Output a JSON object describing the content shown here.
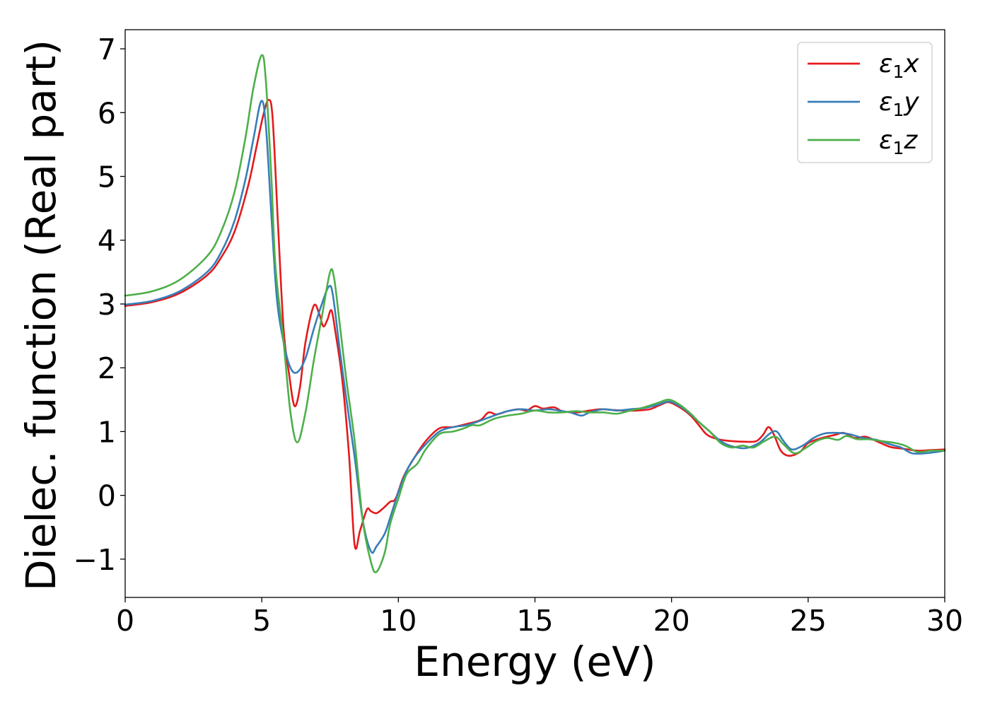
{
  "chart_data": {
    "type": "line",
    "xlabel": "Energy (eV)",
    "ylabel": "Dielec. function (Real part)",
    "xlim": [
      0,
      30
    ],
    "ylim": [
      -1.6,
      7.3
    ],
    "xticks": [
      0,
      5,
      10,
      15,
      20,
      25,
      30
    ],
    "yticks": [
      -1,
      0,
      1,
      2,
      3,
      4,
      5,
      6,
      7
    ],
    "grid": false,
    "legend_position": "top-right",
    "series": [
      {
        "name": "ε1x",
        "legend": {
          "base": "ε",
          "sub": "1",
          "tail": "x"
        },
        "color": "#e41a1c",
        "points": [
          [
            0,
            2.97
          ],
          [
            1,
            3.03
          ],
          [
            2,
            3.17
          ],
          [
            3,
            3.45
          ],
          [
            3.5,
            3.72
          ],
          [
            4,
            4.13
          ],
          [
            4.5,
            4.85
          ],
          [
            4.8,
            5.45
          ],
          [
            5.05,
            5.95
          ],
          [
            5.25,
            6.2
          ],
          [
            5.4,
            5.9
          ],
          [
            5.6,
            4.2
          ],
          [
            5.8,
            2.6
          ],
          [
            6.0,
            1.9
          ],
          [
            6.2,
            1.4
          ],
          [
            6.4,
            1.7
          ],
          [
            6.6,
            2.4
          ],
          [
            6.9,
            2.97
          ],
          [
            7.1,
            2.85
          ],
          [
            7.25,
            2.65
          ],
          [
            7.4,
            2.75
          ],
          [
            7.55,
            2.9
          ],
          [
            7.7,
            2.55
          ],
          [
            7.95,
            1.8
          ],
          [
            8.2,
            0.6
          ],
          [
            8.4,
            -0.78
          ],
          [
            8.6,
            -0.55
          ],
          [
            8.85,
            -0.22
          ],
          [
            9.0,
            -0.25
          ],
          [
            9.2,
            -0.28
          ],
          [
            9.45,
            -0.2
          ],
          [
            9.7,
            -0.1
          ],
          [
            9.9,
            -0.05
          ],
          [
            10.2,
            0.3
          ],
          [
            10.6,
            0.6
          ],
          [
            11.0,
            0.85
          ],
          [
            11.5,
            1.05
          ],
          [
            12,
            1.07
          ],
          [
            12.5,
            1.12
          ],
          [
            13,
            1.18
          ],
          [
            13.3,
            1.3
          ],
          [
            13.6,
            1.27
          ],
          [
            14,
            1.32
          ],
          [
            14.4,
            1.35
          ],
          [
            14.7,
            1.33
          ],
          [
            15,
            1.4
          ],
          [
            15.3,
            1.36
          ],
          [
            15.7,
            1.38
          ],
          [
            16,
            1.32
          ],
          [
            16.5,
            1.3
          ],
          [
            17,
            1.33
          ],
          [
            17.4,
            1.35
          ],
          [
            17.8,
            1.34
          ],
          [
            18.2,
            1.33
          ],
          [
            18.7,
            1.33
          ],
          [
            19.2,
            1.35
          ],
          [
            19.6,
            1.42
          ],
          [
            19.9,
            1.46
          ],
          [
            20.3,
            1.38
          ],
          [
            20.7,
            1.25
          ],
          [
            21,
            1.1
          ],
          [
            21.3,
            0.95
          ],
          [
            21.7,
            0.88
          ],
          [
            22.2,
            0.85
          ],
          [
            22.7,
            0.84
          ],
          [
            23.1,
            0.85
          ],
          [
            23.35,
            0.95
          ],
          [
            23.55,
            1.07
          ],
          [
            23.75,
            0.95
          ],
          [
            24.0,
            0.7
          ],
          [
            24.3,
            0.62
          ],
          [
            24.7,
            0.68
          ],
          [
            25.0,
            0.82
          ],
          [
            25.5,
            0.9
          ],
          [
            26.0,
            0.95
          ],
          [
            26.3,
            0.98
          ],
          [
            26.7,
            0.9
          ],
          [
            27.1,
            0.92
          ],
          [
            27.5,
            0.85
          ],
          [
            28.0,
            0.76
          ],
          [
            28.5,
            0.73
          ],
          [
            29.0,
            0.7
          ],
          [
            29.5,
            0.71
          ],
          [
            30,
            0.72
          ]
        ]
      },
      {
        "name": "ε1y",
        "legend": {
          "base": "ε",
          "sub": "1",
          "tail": "y"
        },
        "color": "#377eb8",
        "points": [
          [
            0,
            2.99
          ],
          [
            1,
            3.05
          ],
          [
            2,
            3.2
          ],
          [
            3,
            3.5
          ],
          [
            3.5,
            3.8
          ],
          [
            4,
            4.3
          ],
          [
            4.4,
            4.95
          ],
          [
            4.7,
            5.6
          ],
          [
            4.98,
            6.18
          ],
          [
            5.15,
            5.8
          ],
          [
            5.35,
            4.4
          ],
          [
            5.55,
            3.1
          ],
          [
            5.8,
            2.4
          ],
          [
            6.05,
            2.0
          ],
          [
            6.3,
            1.93
          ],
          [
            6.6,
            2.15
          ],
          [
            6.9,
            2.6
          ],
          [
            7.2,
            3.0
          ],
          [
            7.45,
            3.27
          ],
          [
            7.6,
            3.15
          ],
          [
            7.85,
            2.3
          ],
          [
            8.1,
            1.5
          ],
          [
            8.4,
            0.6
          ],
          [
            8.7,
            -0.4
          ],
          [
            9.0,
            -0.88
          ],
          [
            9.2,
            -0.8
          ],
          [
            9.5,
            -0.6
          ],
          [
            9.7,
            -0.35
          ],
          [
            10.0,
            0.05
          ],
          [
            10.3,
            0.38
          ],
          [
            10.6,
            0.6
          ],
          [
            11.0,
            0.8
          ],
          [
            11.5,
            1.0
          ],
          [
            12,
            1.07
          ],
          [
            12.5,
            1.1
          ],
          [
            13,
            1.17
          ],
          [
            13.5,
            1.25
          ],
          [
            14,
            1.32
          ],
          [
            14.5,
            1.35
          ],
          [
            15,
            1.33
          ],
          [
            15.5,
            1.35
          ],
          [
            16,
            1.32
          ],
          [
            16.3,
            1.3
          ],
          [
            16.7,
            1.25
          ],
          [
            17,
            1.3
          ],
          [
            17.5,
            1.35
          ],
          [
            18,
            1.33
          ],
          [
            18.5,
            1.35
          ],
          [
            19,
            1.37
          ],
          [
            19.5,
            1.42
          ],
          [
            19.9,
            1.47
          ],
          [
            20.3,
            1.4
          ],
          [
            20.7,
            1.27
          ],
          [
            21,
            1.15
          ],
          [
            21.4,
            1.0
          ],
          [
            21.8,
            0.85
          ],
          [
            22.2,
            0.77
          ],
          [
            22.7,
            0.74
          ],
          [
            23.2,
            0.82
          ],
          [
            23.6,
            0.97
          ],
          [
            23.85,
            1.0
          ],
          [
            24.1,
            0.85
          ],
          [
            24.4,
            0.72
          ],
          [
            24.8,
            0.78
          ],
          [
            25.2,
            0.9
          ],
          [
            25.6,
            0.97
          ],
          [
            26.0,
            0.98
          ],
          [
            26.5,
            0.96
          ],
          [
            27.0,
            0.9
          ],
          [
            27.5,
            0.87
          ],
          [
            28.0,
            0.8
          ],
          [
            28.4,
            0.75
          ],
          [
            28.8,
            0.66
          ],
          [
            29.3,
            0.66
          ],
          [
            30,
            0.7
          ]
        ]
      },
      {
        "name": "ε1z",
        "legend": {
          "base": "ε",
          "sub": "1",
          "tail": "z"
        },
        "color": "#4daf4a",
        "points": [
          [
            0,
            3.13
          ],
          [
            1,
            3.2
          ],
          [
            2,
            3.38
          ],
          [
            3,
            3.75
          ],
          [
            3.5,
            4.12
          ],
          [
            4,
            4.75
          ],
          [
            4.4,
            5.6
          ],
          [
            4.7,
            6.4
          ],
          [
            5.0,
            6.9
          ],
          [
            5.15,
            6.5
          ],
          [
            5.35,
            5.0
          ],
          [
            5.5,
            3.6
          ],
          [
            5.8,
            2.4
          ],
          [
            6.05,
            1.3
          ],
          [
            6.3,
            0.83
          ],
          [
            6.6,
            1.3
          ],
          [
            6.9,
            2.1
          ],
          [
            7.2,
            2.8
          ],
          [
            7.5,
            3.5
          ],
          [
            7.65,
            3.4
          ],
          [
            7.85,
            2.7
          ],
          [
            8.1,
            1.8
          ],
          [
            8.4,
            0.85
          ],
          [
            8.7,
            -0.4
          ],
          [
            9.0,
            -1.05
          ],
          [
            9.2,
            -1.2
          ],
          [
            9.5,
            -0.9
          ],
          [
            9.7,
            -0.45
          ],
          [
            10.0,
            -0.05
          ],
          [
            10.3,
            0.33
          ],
          [
            10.7,
            0.5
          ],
          [
            11.0,
            0.72
          ],
          [
            11.5,
            0.96
          ],
          [
            12,
            1.0
          ],
          [
            12.4,
            1.05
          ],
          [
            12.7,
            1.1
          ],
          [
            13,
            1.1
          ],
          [
            13.5,
            1.2
          ],
          [
            14,
            1.25
          ],
          [
            14.5,
            1.28
          ],
          [
            15,
            1.33
          ],
          [
            15.5,
            1.3
          ],
          [
            16,
            1.3
          ],
          [
            16.5,
            1.32
          ],
          [
            17,
            1.3
          ],
          [
            17.5,
            1.3
          ],
          [
            18,
            1.28
          ],
          [
            18.5,
            1.33
          ],
          [
            19,
            1.38
          ],
          [
            19.5,
            1.45
          ],
          [
            19.9,
            1.5
          ],
          [
            20.3,
            1.42
          ],
          [
            20.7,
            1.28
          ],
          [
            21,
            1.15
          ],
          [
            21.4,
            1.0
          ],
          [
            21.8,
            0.82
          ],
          [
            22.2,
            0.75
          ],
          [
            22.6,
            0.78
          ],
          [
            23.0,
            0.75
          ],
          [
            23.4,
            0.85
          ],
          [
            23.8,
            0.92
          ],
          [
            24.1,
            0.8
          ],
          [
            24.5,
            0.66
          ],
          [
            24.9,
            0.74
          ],
          [
            25.3,
            0.85
          ],
          [
            25.7,
            0.9
          ],
          [
            26.1,
            0.87
          ],
          [
            26.4,
            0.93
          ],
          [
            26.8,
            0.88
          ],
          [
            27.2,
            0.88
          ],
          [
            27.7,
            0.85
          ],
          [
            28.2,
            0.82
          ],
          [
            28.6,
            0.77
          ],
          [
            29.0,
            0.68
          ],
          [
            29.5,
            0.7
          ],
          [
            30,
            0.7
          ]
        ]
      }
    ]
  }
}
